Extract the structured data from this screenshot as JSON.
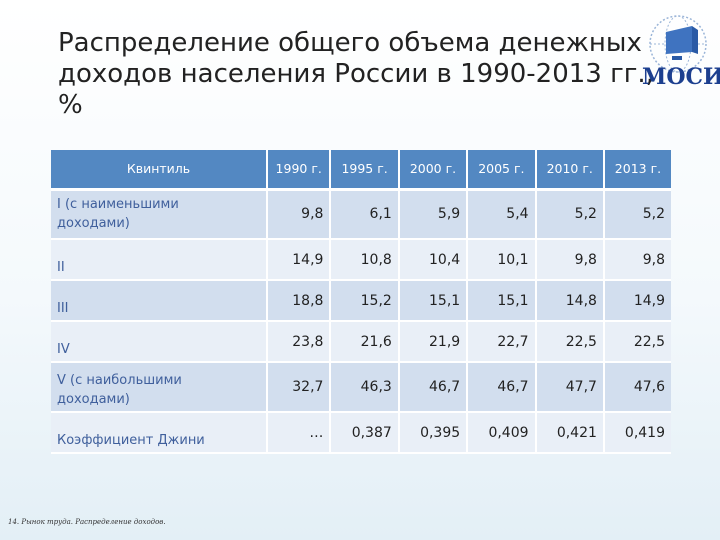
{
  "title": {
    "line1": "Распределение общего объема денежных",
    "line2": "доходов населения России в 1990-2013 гг.,",
    "line3": "%"
  },
  "logo": {
    "text": "МОСИ",
    "icon": "institute-globe-logo-icon",
    "color": "#1c3f8f"
  },
  "table": {
    "headers": [
      "Квинтиль",
      "1990 г.",
      "1995 г.",
      "2000 г.",
      "2005 г.",
      "2010 г.",
      "2013 г."
    ],
    "rows": [
      {
        "label_line1": "I (с наименьшими",
        "label_line2": "доходами)",
        "values": [
          "9,8",
          "6,1",
          "5,9",
          "5,4",
          "5,2",
          "5,2"
        ]
      },
      {
        "label_line1": "II",
        "label_line2": "",
        "values": [
          "14,9",
          "10,8",
          "10,4",
          "10,1",
          "9,8",
          "9,8"
        ]
      },
      {
        "label_line1": "III",
        "label_line2": "",
        "values": [
          "18,8",
          "15,2",
          "15,1",
          "15,1",
          "14,8",
          "14,9"
        ]
      },
      {
        "label_line1": "IV",
        "label_line2": "",
        "values": [
          "23,8",
          "21,6",
          "21,9",
          "22,7",
          "22,5",
          "22,5"
        ]
      },
      {
        "label_line1": "V (с наибольшими",
        "label_line2": "доходами)",
        "values": [
          "32,7",
          "46,3",
          "46,7",
          "46,7",
          "47,7",
          "47,6"
        ]
      },
      {
        "label_line1": "Коэффициент Джини",
        "label_line2": "",
        "values": [
          "…",
          "0,387",
          "0,395",
          "0,409",
          "0,421",
          "0,419"
        ]
      }
    ],
    "colors": {
      "header": "#5388c2",
      "row_dark": "#d2deee",
      "row_light": "#e9eff7",
      "label_text": "#3f5f9c"
    }
  },
  "footer": "14. Рынок труда. Распределение доходов."
}
